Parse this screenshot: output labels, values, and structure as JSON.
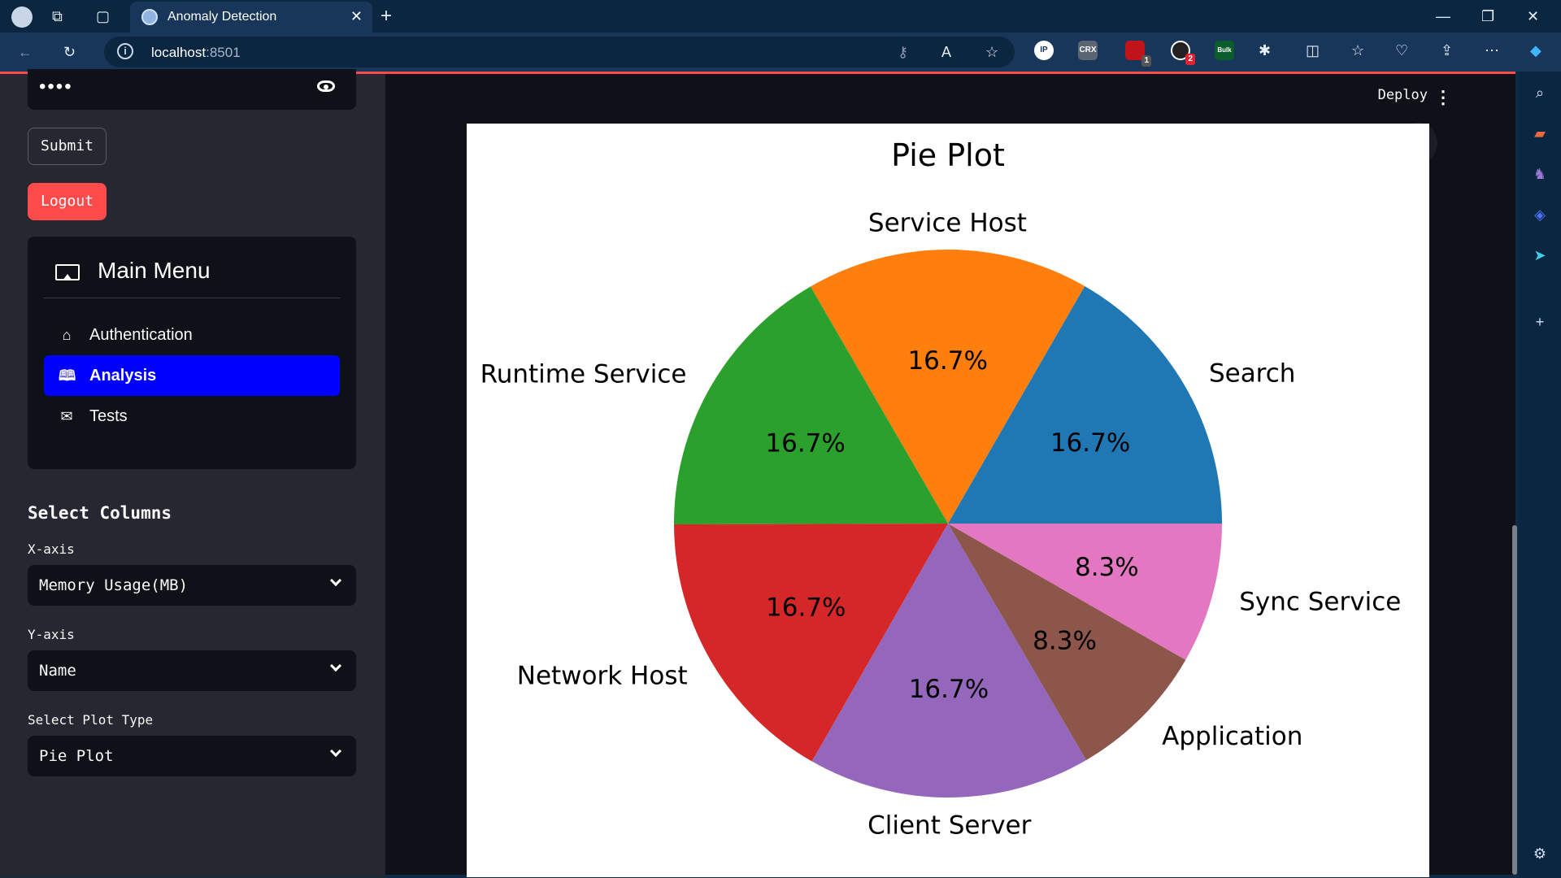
{
  "browser": {
    "tab_title": "Anomaly Detection",
    "url_host": "localhost",
    "url_port": ":8501",
    "badge_ublock": "1",
    "badge_ext2": "2",
    "ext_crx": "CRX",
    "ext_ip": "IP",
    "ext_bulk": "Bulk"
  },
  "sidebar": {
    "password_mask": "••••",
    "submit_label": "Submit",
    "logout_label": "Logout",
    "menu": {
      "title": "Main Menu",
      "items": [
        {
          "label": "Authentication",
          "icon": "house-icon",
          "active": false
        },
        {
          "label": "Analysis",
          "icon": "book-icon",
          "active": true
        },
        {
          "label": "Tests",
          "icon": "envelope-icon",
          "active": false
        }
      ]
    },
    "select_columns_title": "Select Columns",
    "x_axis_label": "X-axis",
    "x_axis_value": "Memory Usage(MB)",
    "y_axis_label": "Y-axis",
    "y_axis_value": "Name",
    "plot_type_label": "Select Plot Type",
    "plot_type_value": "Pie Plot"
  },
  "header": {
    "deploy_label": "Deploy"
  },
  "colors": {
    "accent": "#ff4b4b",
    "active_menu": "#0000ff"
  },
  "chart_data": {
    "type": "pie",
    "title": "Pie Plot",
    "slices": [
      {
        "label": "Search",
        "value": 16.7,
        "pct_label": "16.7%",
        "color": "#1f77b4"
      },
      {
        "label": "Service Host",
        "value": 16.7,
        "pct_label": "16.7%",
        "color": "#ff7f0e"
      },
      {
        "label": "Runtime Service",
        "value": 16.7,
        "pct_label": "16.7%",
        "color": "#2ca02c"
      },
      {
        "label": "Network Host",
        "value": 16.7,
        "pct_label": "16.7%",
        "color": "#d62728"
      },
      {
        "label": "Client Server",
        "value": 16.7,
        "pct_label": "16.7%",
        "color": "#9467bd"
      },
      {
        "label": "Application",
        "value": 8.3,
        "pct_label": "8.3%",
        "color": "#8c564b"
      },
      {
        "label": "Sync Service",
        "value": 8.3,
        "pct_label": "8.3%",
        "color": "#e377c2"
      }
    ]
  }
}
